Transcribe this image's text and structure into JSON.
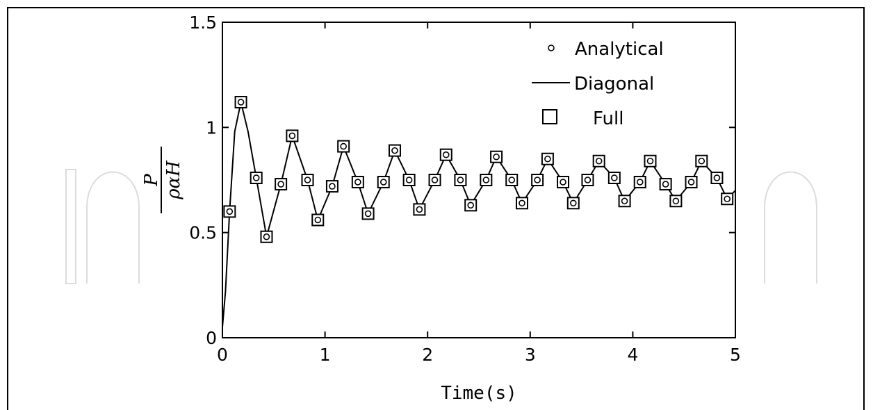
{
  "chart_data": {
    "type": "line",
    "title": "",
    "xlabel": "Time(s)",
    "ylabel_numerator": "P",
    "ylabel_denominator": "ραH",
    "xlim": [
      0,
      5
    ],
    "ylim": [
      0,
      1.5
    ],
    "xticks": [
      0,
      1,
      2,
      3,
      4,
      5
    ],
    "yticks": [
      0,
      0.5,
      1,
      1.5
    ],
    "grid": false,
    "legend_position": "top-right",
    "legend": [
      {
        "label": "Analytical",
        "marker": "circle"
      },
      {
        "label": "Diagonal",
        "marker": "line"
      },
      {
        "label": "Full",
        "marker": "square"
      }
    ],
    "series": [
      {
        "name": "Analytical",
        "style": "circle-markers",
        "x": [
          0.07,
          0.18,
          0.33,
          0.43,
          0.57,
          0.68,
          0.83,
          0.93,
          1.07,
          1.18,
          1.32,
          1.42,
          1.57,
          1.68,
          1.82,
          1.92,
          2.07,
          2.18,
          2.32,
          2.42,
          2.57,
          2.67,
          2.82,
          2.92,
          3.07,
          3.17,
          3.32,
          3.42,
          3.56,
          3.67,
          3.82,
          3.92,
          4.07,
          4.17,
          4.32,
          4.42,
          4.57,
          4.67,
          4.82,
          4.92
        ],
        "y": [
          0.6,
          1.12,
          0.76,
          0.48,
          0.73,
          0.96,
          0.75,
          0.56,
          0.72,
          0.91,
          0.74,
          0.59,
          0.74,
          0.89,
          0.75,
          0.61,
          0.75,
          0.87,
          0.75,
          0.63,
          0.75,
          0.86,
          0.75,
          0.64,
          0.75,
          0.85,
          0.74,
          0.64,
          0.75,
          0.84,
          0.76,
          0.65,
          0.74,
          0.84,
          0.73,
          0.65,
          0.74,
          0.84,
          0.76,
          0.66
        ]
      },
      {
        "name": "Diagonal",
        "style": "solid-line",
        "x": [
          0.0,
          0.03,
          0.07,
          0.12,
          0.18,
          0.25,
          0.33,
          0.43,
          0.57,
          0.68,
          0.83,
          0.93,
          1.07,
          1.18,
          1.32,
          1.42,
          1.57,
          1.68,
          1.82,
          1.92,
          2.07,
          2.18,
          2.32,
          2.42,
          2.57,
          2.67,
          2.82,
          2.92,
          3.07,
          3.17,
          3.32,
          3.42,
          3.56,
          3.67,
          3.82,
          3.92,
          4.07,
          4.17,
          4.32,
          4.42,
          4.57,
          4.67,
          4.82,
          4.92,
          5.0
        ],
        "y": [
          0.05,
          0.22,
          0.6,
          0.98,
          1.12,
          0.98,
          0.76,
          0.48,
          0.73,
          0.96,
          0.75,
          0.56,
          0.72,
          0.91,
          0.74,
          0.59,
          0.74,
          0.89,
          0.75,
          0.61,
          0.75,
          0.87,
          0.75,
          0.63,
          0.75,
          0.86,
          0.75,
          0.64,
          0.75,
          0.85,
          0.74,
          0.64,
          0.75,
          0.84,
          0.76,
          0.65,
          0.74,
          0.84,
          0.73,
          0.65,
          0.74,
          0.84,
          0.76,
          0.66,
          0.7
        ]
      },
      {
        "name": "Full",
        "style": "square-markers",
        "x": [
          0.07,
          0.18,
          0.33,
          0.43,
          0.57,
          0.68,
          0.83,
          0.93,
          1.07,
          1.18,
          1.32,
          1.42,
          1.57,
          1.68,
          1.82,
          1.92,
          2.07,
          2.18,
          2.32,
          2.42,
          2.57,
          2.67,
          2.82,
          2.92,
          3.07,
          3.17,
          3.32,
          3.42,
          3.56,
          3.67,
          3.82,
          3.92,
          4.07,
          4.17,
          4.32,
          4.42,
          4.57,
          4.67,
          4.82,
          4.92
        ],
        "y": [
          0.6,
          1.12,
          0.76,
          0.48,
          0.73,
          0.96,
          0.75,
          0.56,
          0.72,
          0.91,
          0.74,
          0.59,
          0.74,
          0.89,
          0.75,
          0.61,
          0.75,
          0.87,
          0.75,
          0.63,
          0.75,
          0.86,
          0.75,
          0.64,
          0.75,
          0.85,
          0.74,
          0.64,
          0.75,
          0.84,
          0.76,
          0.65,
          0.74,
          0.84,
          0.73,
          0.65,
          0.74,
          0.84,
          0.76,
          0.66
        ]
      }
    ]
  }
}
